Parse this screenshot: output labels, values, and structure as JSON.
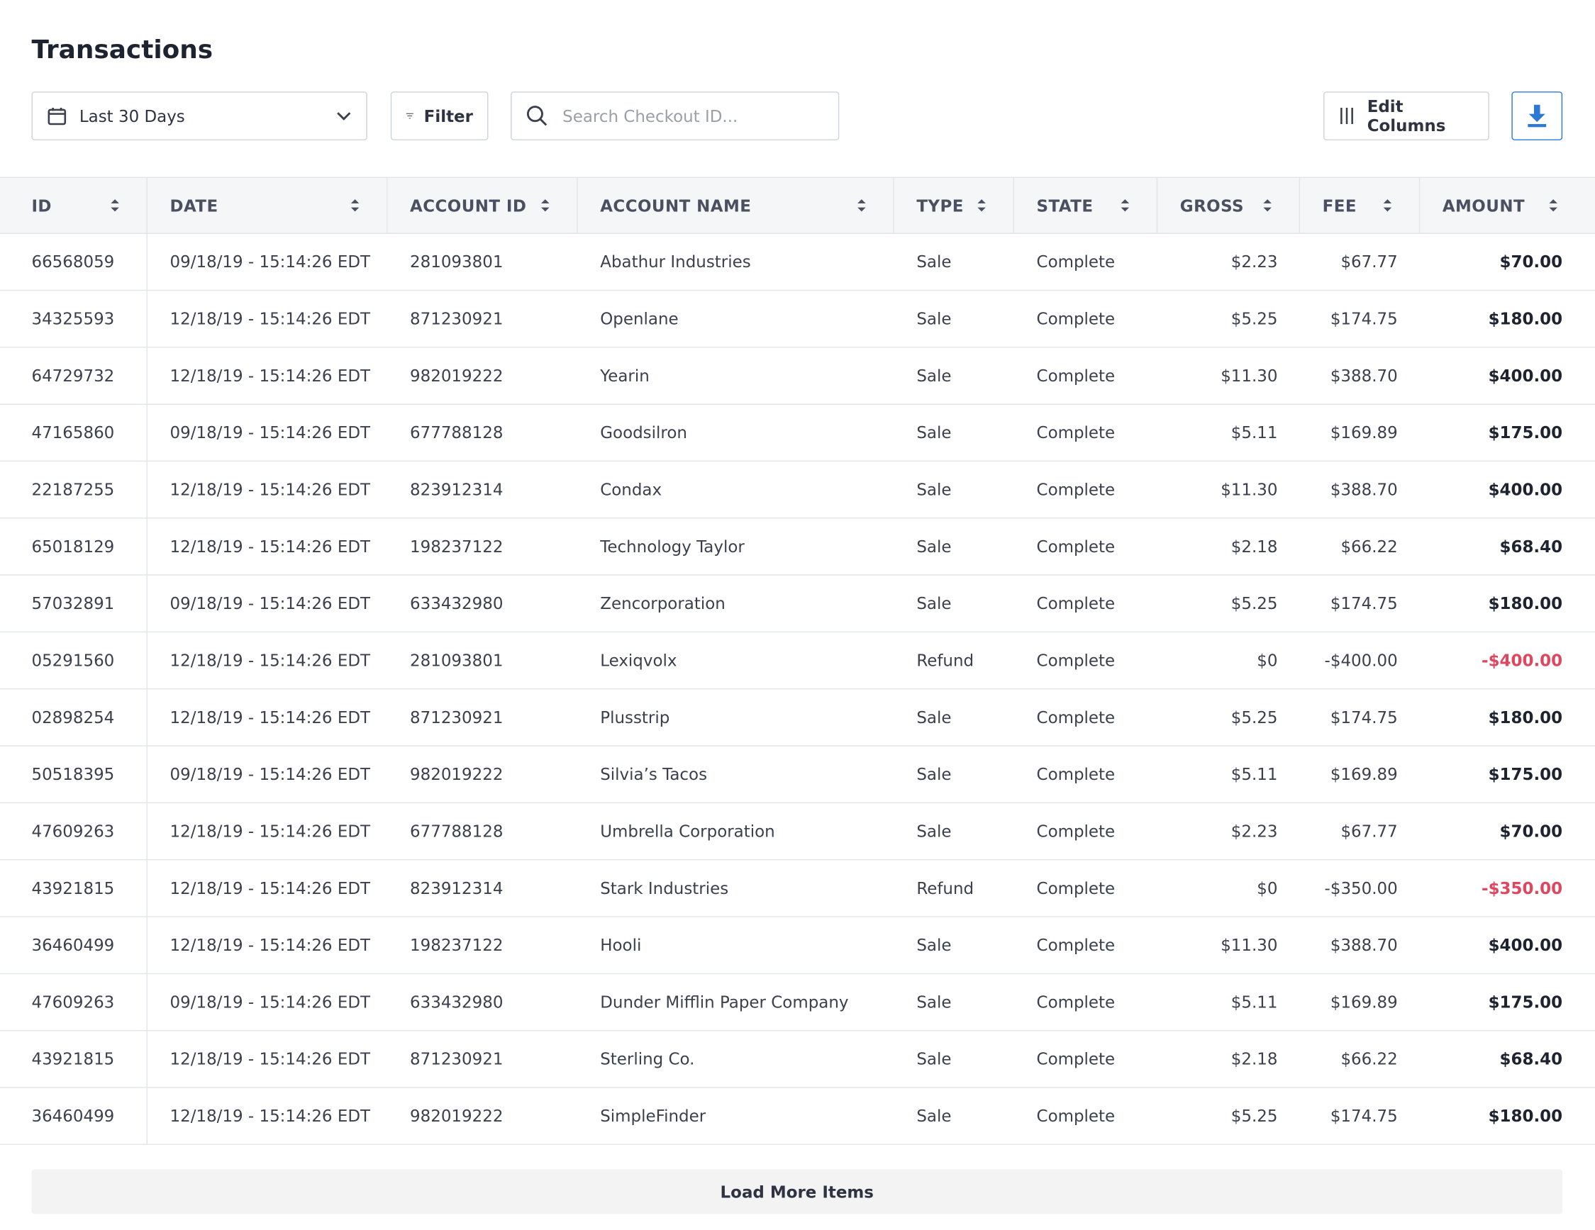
{
  "header": {
    "title": "Transactions"
  },
  "toolbar": {
    "date_range": "Last 30 Days",
    "filter": "Filter",
    "search_placeholder": "Search Checkout ID...",
    "edit_columns": "Edit Columns"
  },
  "table": {
    "columns": [
      "ID",
      "DATE",
      "ACCOUNT ID",
      "ACCOUNT NAME",
      "TYPE",
      "STATE",
      "GROSS",
      "FEE",
      "AMOUNT"
    ],
    "rows": [
      [
        "66568059",
        "09/18/19 - 15:14:26 EDT",
        "281093801",
        "Abathur Industries",
        "Sale",
        "Complete",
        "$2.23",
        "$67.77",
        "$70.00"
      ],
      [
        "34325593",
        "12/18/19 - 15:14:26 EDT",
        "871230921",
        "Openlane",
        "Sale",
        "Complete",
        "$5.25",
        "$174.75",
        "$180.00"
      ],
      [
        "64729732",
        "12/18/19 - 15:14:26 EDT",
        "982019222",
        "Yearin",
        "Sale",
        "Complete",
        "$11.30",
        "$388.70",
        "$400.00"
      ],
      [
        "47165860",
        "09/18/19 - 15:14:26 EDT",
        "677788128",
        "Goodsilron",
        "Sale",
        "Complete",
        "$5.11",
        "$169.89",
        "$175.00"
      ],
      [
        "22187255",
        "12/18/19 - 15:14:26 EDT",
        "823912314",
        "Condax",
        "Sale",
        "Complete",
        "$11.30",
        "$388.70",
        "$400.00"
      ],
      [
        "65018129",
        "12/18/19 - 15:14:26 EDT",
        "198237122",
        "Technology Taylor",
        "Sale",
        "Complete",
        "$2.18",
        "$66.22",
        "$68.40"
      ],
      [
        "57032891",
        "09/18/19 - 15:14:26 EDT",
        "633432980",
        "Zencorporation",
        "Sale",
        "Complete",
        "$5.25",
        "$174.75",
        "$180.00"
      ],
      [
        "05291560",
        "12/18/19 - 15:14:26 EDT",
        "281093801",
        "Lexiqvolx",
        "Refund",
        "Complete",
        "$0",
        "-$400.00",
        "-$400.00"
      ],
      [
        "02898254",
        "12/18/19 - 15:14:26 EDT",
        "871230921",
        "Plusstrip",
        "Sale",
        "Complete",
        "$5.25",
        "$174.75",
        "$180.00"
      ],
      [
        "50518395",
        "09/18/19 - 15:14:26 EDT",
        "982019222",
        "Silvia’s Tacos",
        "Sale",
        "Complete",
        "$5.11",
        "$169.89",
        "$175.00"
      ],
      [
        "47609263",
        "12/18/19 - 15:14:26 EDT",
        "677788128",
        "Umbrella Corporation",
        "Sale",
        "Complete",
        "$2.23",
        "$67.77",
        "$70.00"
      ],
      [
        "43921815",
        "12/18/19 - 15:14:26 EDT",
        "823912314",
        "Stark Industries",
        "Refund",
        "Complete",
        "$0",
        "-$350.00",
        "-$350.00"
      ],
      [
        "36460499",
        "12/18/19 - 15:14:26 EDT",
        "198237122",
        "Hooli",
        "Sale",
        "Complete",
        "$11.30",
        "$388.70",
        "$400.00"
      ],
      [
        "47609263",
        "09/18/19 - 15:14:26 EDT",
        "633432980",
        "Dunder Mifflin Paper Company",
        "Sale",
        "Complete",
        "$5.11",
        "$169.89",
        "$175.00"
      ],
      [
        "43921815",
        "12/18/19 - 15:14:26 EDT",
        "871230921",
        "Sterling Co.",
        "Sale",
        "Complete",
        "$2.18",
        "$66.22",
        "$68.40"
      ],
      [
        "36460499",
        "12/18/19 - 15:14:26 EDT",
        "982019222",
        "SimpleFinder",
        "Sale",
        "Complete",
        "$5.25",
        "$174.75",
        "$180.00"
      ]
    ]
  },
  "footer": {
    "load_more": "Load More Items"
  }
}
